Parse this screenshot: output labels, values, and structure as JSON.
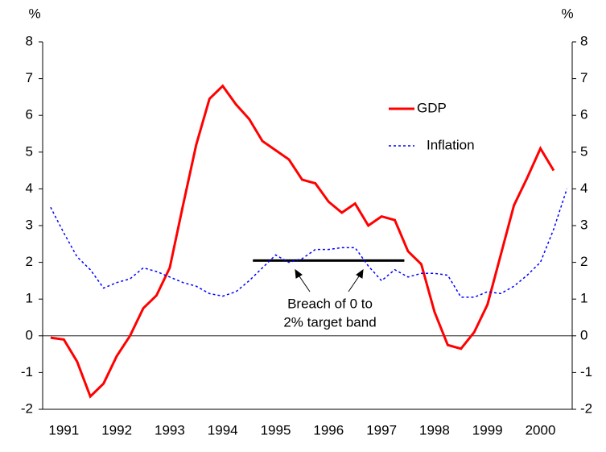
{
  "chart_data": {
    "type": "line",
    "y_label": "%",
    "y2_label": "%",
    "x": [
      1991,
      1991.25,
      1991.5,
      1991.75,
      1992,
      1992.25,
      1992.5,
      1992.75,
      1993,
      1993.25,
      1993.5,
      1993.75,
      1994,
      1994.25,
      1994.5,
      1994.75,
      1995,
      1995.25,
      1995.5,
      1995.75,
      1996,
      1996.25,
      1996.5,
      1996.75,
      1997,
      1997.25,
      1997.5,
      1997.75,
      1998,
      1998.25,
      1998.5,
      1998.75,
      1999,
      1999.25,
      1999.5,
      1999.75,
      2000,
      2000.25,
      2000.5,
      2000.75
    ],
    "series": [
      {
        "name": "GDP",
        "color": "#ff0000",
        "style": "solid",
        "values": [
          -0.05,
          -0.1,
          -0.7,
          -1.65,
          -1.3,
          -0.55,
          0.0,
          0.75,
          1.1,
          1.85,
          3.55,
          5.2,
          6.45,
          6.8,
          6.3,
          5.9,
          5.3,
          5.05,
          4.8,
          4.25,
          4.15,
          3.65,
          3.35,
          3.6,
          3.0,
          3.25,
          3.15,
          2.3,
          1.95,
          0.65,
          -0.25,
          -0.35,
          0.1,
          0.85,
          2.2,
          3.55,
          4.3,
          5.1,
          4.5,
          null
        ]
      },
      {
        "name": "Inflation",
        "color": "#0000ff",
        "style": "dotted",
        "values": [
          3.5,
          2.8,
          2.15,
          1.8,
          1.3,
          1.45,
          1.55,
          1.85,
          1.75,
          1.6,
          1.45,
          1.35,
          1.15,
          1.08,
          1.2,
          1.5,
          1.85,
          2.2,
          2.0,
          2.1,
          2.35,
          2.35,
          2.4,
          2.4,
          1.9,
          1.5,
          1.8,
          1.6,
          1.7,
          1.7,
          1.65,
          1.05,
          1.05,
          1.2,
          1.15,
          1.35,
          1.65,
          2.0,
          2.9,
          4.0
        ]
      }
    ],
    "xlim": [
      1990.85,
      2000.85
    ],
    "xticks": [
      {
        "value": 1991.25,
        "label": "1991"
      },
      {
        "value": 1992.25,
        "label": "1992"
      },
      {
        "value": 1993.25,
        "label": "1993"
      },
      {
        "value": 1994.25,
        "label": "1994"
      },
      {
        "value": 1995.25,
        "label": "1995"
      },
      {
        "value": 1996.25,
        "label": "1996"
      },
      {
        "value": 1997.25,
        "label": "1997"
      },
      {
        "value": 1998.25,
        "label": "1998"
      },
      {
        "value": 1999.25,
        "label": "1999"
      },
      {
        "value": 2000.25,
        "label": "2000"
      }
    ],
    "ylim": [
      -2,
      8
    ],
    "yticks": [
      -2,
      -1,
      0,
      1,
      2,
      3,
      4,
      5,
      6,
      7,
      8
    ],
    "y2lim": [
      -2,
      8
    ],
    "y2ticks": [
      -2,
      -1,
      0,
      1,
      2,
      3,
      4,
      5,
      6,
      7,
      8
    ],
    "reference_line": {
      "value": 2.05,
      "x": [
        1994.82,
        1997.68
      ]
    },
    "annotation": [
      "Breach of 0 to",
      "2% target band"
    ],
    "legend": "upper-right"
  }
}
